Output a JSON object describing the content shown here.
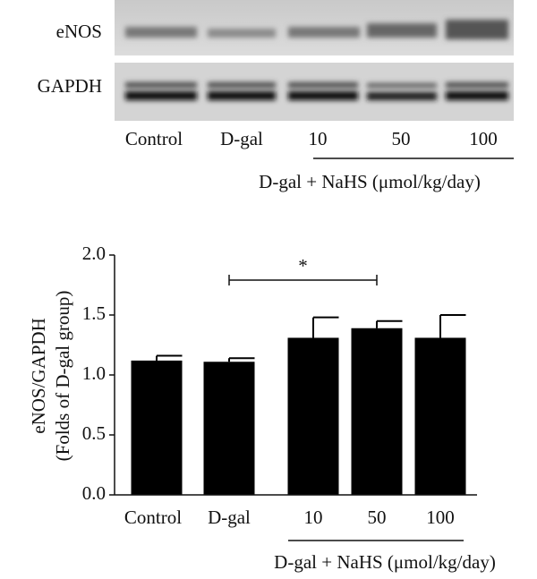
{
  "blot": {
    "rows": [
      "eNOS",
      "GAPDH"
    ],
    "lanes": [
      "Control",
      "D-gal",
      "10",
      "50",
      "100"
    ],
    "group_label": "D-gal + NaHS (μmol/kg/day)"
  },
  "chart_data": {
    "type": "bar",
    "ylabel": [
      "eNOS/GAPDH",
      "(Folds of D-gal group)"
    ],
    "categories": [
      "Control",
      "D-gal",
      "10",
      "50",
      "100"
    ],
    "group_label": "D-gal + NaHS (μmol/kg/day)",
    "values": [
      1.12,
      1.11,
      1.31,
      1.39,
      1.31
    ],
    "errors": [
      0.04,
      0.03,
      0.17,
      0.06,
      0.19
    ],
    "color": "#000000",
    "ylim": [
      0,
      2
    ],
    "yticks": [
      {
        "value": 0,
        "label": "0.0"
      },
      0.5,
      {
        "value": 1,
        "label": "1.0"
      },
      1.5,
      {
        "value": 2,
        "label": "2.0"
      }
    ],
    "annotations": [
      "*"
    ]
  }
}
